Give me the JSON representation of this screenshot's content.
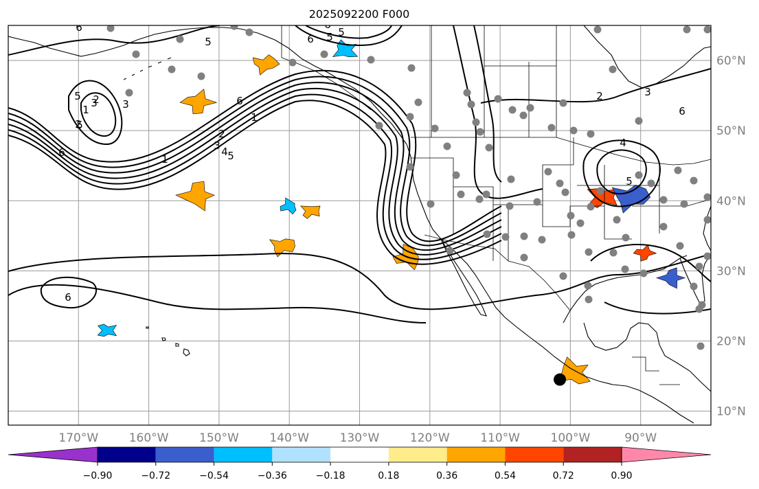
{
  "figure": {
    "title": "2025092200 F000"
  },
  "map": {
    "projection": "PlateCarree",
    "extent_lon": [
      -180,
      -80
    ],
    "extent_lat": [
      8,
      65
    ],
    "lat_ticks": [
      {
        "value": 10,
        "label": "10°N"
      },
      {
        "value": 20,
        "label": "20°N"
      },
      {
        "value": 30,
        "label": "30°N"
      },
      {
        "value": 40,
        "label": "40°N"
      },
      {
        "value": 50,
        "label": "50°N"
      },
      {
        "value": 60,
        "label": "60°N"
      }
    ],
    "lon_ticks": [
      {
        "value": -170,
        "label": "170°W"
      },
      {
        "value": -160,
        "label": "160°W"
      },
      {
        "value": -150,
        "label": "150°W"
      },
      {
        "value": -140,
        "label": "140°W"
      },
      {
        "value": -130,
        "label": "130°W"
      },
      {
        "value": -120,
        "label": "120°W"
      },
      {
        "value": -110,
        "label": "110°W"
      },
      {
        "value": -100,
        "label": "100°W"
      },
      {
        "value": -90,
        "label": "90°W"
      }
    ],
    "gridlines": true,
    "marked_point": {
      "lon": -101.5,
      "lat": 14.5
    }
  },
  "colorbar": {
    "orientation": "horizontal",
    "extend": "both",
    "levels": [
      -0.9,
      -0.72,
      -0.54,
      -0.36,
      -0.18,
      0.18,
      0.36,
      0.54,
      0.72,
      0.9
    ],
    "tick_labels": [
      "−0.90",
      "−0.72",
      "−0.54",
      "−0.36",
      "−0.18",
      "0.18",
      "0.36",
      "0.54",
      "0.72",
      "0.90"
    ],
    "colors": [
      "#9932cc",
      "#00008b",
      "#3a5fcd",
      "#00bfff",
      "#b0e2ff",
      "#ffffff",
      "#ffec8b",
      "#ffa500",
      "#ff4500",
      "#b22222",
      "#ff88aa"
    ]
  },
  "contour_labels": [
    "6",
    "5",
    "5",
    "6",
    "1",
    "2",
    "3",
    "4",
    "5",
    "6",
    "2",
    "1",
    "2",
    "5",
    "3",
    "3",
    "6",
    "5",
    "6",
    "1",
    "2",
    "3",
    "4",
    "5",
    "6",
    "6",
    "5"
  ],
  "chart_data": {
    "type": "map",
    "title": "2025092200 F000",
    "colorbar_levels": [
      -0.9,
      -0.72,
      -0.54,
      -0.36,
      -0.18,
      0.18,
      0.36,
      0.54,
      0.72,
      0.9
    ],
    "filled_anomalies": [
      {
        "lon": -137.0,
        "lat": 38.5,
        "value": 0.5
      },
      {
        "lon": -143.5,
        "lat": 59.5,
        "value": 0.4
      },
      {
        "lon": -153.0,
        "lat": 54.0,
        "value": 0.45
      },
      {
        "lon": -153.0,
        "lat": 40.8,
        "value": 0.36
      },
      {
        "lon": -140.0,
        "lat": 39.2,
        "value": -0.4
      },
      {
        "lon": -132.0,
        "lat": 61.5,
        "value": -0.5
      },
      {
        "lon": -95.5,
        "lat": 40.5,
        "value": 0.55
      },
      {
        "lon": -91.5,
        "lat": 40.5,
        "value": -0.55
      },
      {
        "lon": -89.5,
        "lat": 32.5,
        "value": 0.55
      },
      {
        "lon": -85.5,
        "lat": 29.0,
        "value": -0.55
      },
      {
        "lon": -123.0,
        "lat": 32.0,
        "value": 0.36
      },
      {
        "lon": -99.5,
        "lat": 15.5,
        "value": 0.4
      },
      {
        "lon": -166.0,
        "lat": 21.5,
        "value": -0.4
      },
      {
        "lon": -141.0,
        "lat": 33.5,
        "value": 0.36
      }
    ]
  }
}
